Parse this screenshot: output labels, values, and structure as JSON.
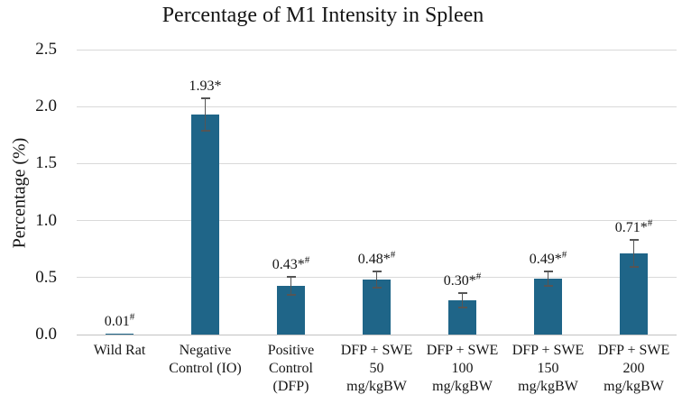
{
  "chart_data": {
    "type": "bar",
    "title": "Percentage of M1 Intensity in Spleen",
    "xlabel": "",
    "ylabel": "Percentage (%)",
    "ylim": [
      0,
      2.5
    ],
    "ytick_step": 0.5,
    "ytick_labels": [
      "0.0",
      "0.5",
      "1.0",
      "1.5",
      "2.0",
      "2.5"
    ],
    "grid": true,
    "legend": false,
    "bar_color": "#1f6588",
    "error_bar_color": "#555555",
    "gridline_color": "#d9d9d9",
    "axis_line_color": "#c2c2c2",
    "categories": [
      "Wild Rat",
      "Negative Control (IO)",
      "Positive Control (DFP)",
      "DFP + SWE 50 mg/kgBW",
      "DFP + SWE 100 mg/kgBW",
      "DFP + SWE 150 mg/kgBW",
      "DFP + SWE 200 mg/kgBW"
    ],
    "category_lines": [
      [
        "Wild Rat"
      ],
      [
        "Negative",
        "Control (IO)"
      ],
      [
        "Positive",
        "Control",
        "(DFP)"
      ],
      [
        "DFP + SWE",
        "50",
        "mg/kgBW"
      ],
      [
        "DFP + SWE",
        "100",
        "mg/kgBW"
      ],
      [
        "DFP + SWE",
        "150",
        "mg/kgBW"
      ],
      [
        "DFP + SWE",
        "200",
        "mg/kgBW"
      ]
    ],
    "bars": [
      {
        "value": 0.01,
        "error": 0,
        "label": "0.01",
        "sig_markers": "#"
      },
      {
        "value": 1.93,
        "error": 0.14,
        "label": "1.93",
        "sig_markers": "*"
      },
      {
        "value": 0.43,
        "error": 0.08,
        "label": "0.43",
        "sig_markers": "*#"
      },
      {
        "value": 0.48,
        "error": 0.07,
        "label": "0.48",
        "sig_markers": "*#"
      },
      {
        "value": 0.3,
        "error": 0.06,
        "label": "0.30",
        "sig_markers": "*#"
      },
      {
        "value": 0.49,
        "error": 0.065,
        "label": "0.49",
        "sig_markers": "*#"
      },
      {
        "value": 0.71,
        "error": 0.12,
        "label": "0.71",
        "sig_markers": "*#"
      }
    ]
  }
}
